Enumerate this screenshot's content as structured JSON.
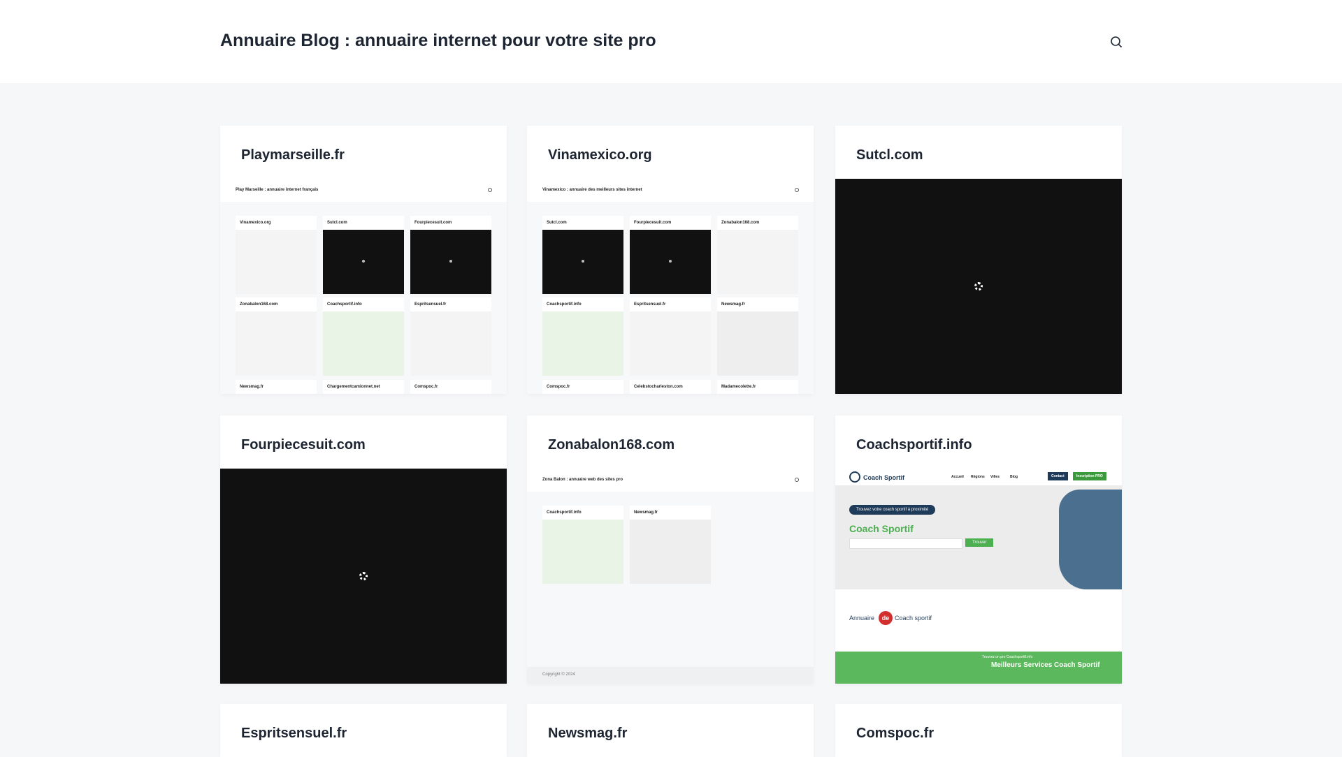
{
  "header": {
    "title": "Annuaire Blog : annuaire internet pour votre site pro"
  },
  "cards": [
    {
      "title": "Playmarseille.fr",
      "preview": {
        "site_title": "Play Marseille : annuaire internet français",
        "tiles": [
          {
            "name": "Vinamexico.org",
            "color": "#f4f4f4"
          },
          {
            "name": "Sutcl.com",
            "color": "#111111"
          },
          {
            "name": "Fourpiecesuit.com",
            "color": "#111111"
          },
          {
            "name": "Zonabalon168.com",
            "color": "#f4f4f4"
          },
          {
            "name": "Coachsportif.info",
            "color": "#e9f3e6"
          },
          {
            "name": "Espritsensuel.fr",
            "color": "#f4f4f4"
          },
          {
            "name": "Newsmag.fr",
            "color": "#f4f4f4"
          },
          {
            "name": "Chargementcamionnet.net",
            "color": "#f4f4f4"
          },
          {
            "name": "Comspoc.fr",
            "color": "#f4f4f4"
          }
        ]
      }
    },
    {
      "title": "Vinamexico.org",
      "preview": {
        "site_title": "Vinamexico : annuaire des meilleurs sites internet",
        "tiles": [
          {
            "name": "Sutcl.com",
            "color": "#111111"
          },
          {
            "name": "Fourpiecesuit.com",
            "color": "#111111"
          },
          {
            "name": "Zonabalon168.com",
            "color": "#f4f4f4"
          },
          {
            "name": "Coachsportif.info",
            "color": "#e9f3e6"
          },
          {
            "name": "Espritsensuel.fr",
            "color": "#f4f4f4"
          },
          {
            "name": "Newsmag.fr",
            "color": "#eeeeee"
          },
          {
            "name": "Comspoc.fr",
            "color": "#f4f4f4"
          },
          {
            "name": "Celebstocharleston.com",
            "color": "#f4f4f4"
          },
          {
            "name": "Madamecolette.fr",
            "color": "#f4f4f4"
          }
        ]
      }
    },
    {
      "title": "Sutcl.com",
      "preview": {
        "color": "#111111"
      }
    },
    {
      "title": "Fourpiecesuit.com",
      "preview": {
        "color": "#111111"
      }
    },
    {
      "title": "Zonabalon168.com",
      "preview": {
        "site_title": "Zona Balon : annuaire web des sites pro",
        "tiles": [
          {
            "name": "Coachsportif.info",
            "color": "#e9f3e6"
          },
          {
            "name": "Newsmag.fr",
            "color": "#eeeeee"
          }
        ],
        "footer": "Copyright © 2024"
      }
    },
    {
      "title": "Coachsportif.info",
      "preview": {
        "logo": "Coach Sportif",
        "nav": [
          "Accueil",
          "Régions",
          "Villes",
          "Blog"
        ],
        "buttons": [
          "Contact",
          "Inscription PRO"
        ],
        "pill": "Trouvez votre coach sportif à proximité",
        "headline": "Coach Sportif",
        "search": "Trouver",
        "annuaire": [
          "Annuaire",
          "de",
          "Coach sportif"
        ],
        "band_small": "Trouvez un pro Coachsportif.info",
        "band": "Meilleurs Services Coach Sportif"
      }
    },
    {
      "title": "Espritsensuel.fr"
    },
    {
      "title": "Newsmag.fr"
    },
    {
      "title": "Comspoc.fr"
    }
  ]
}
